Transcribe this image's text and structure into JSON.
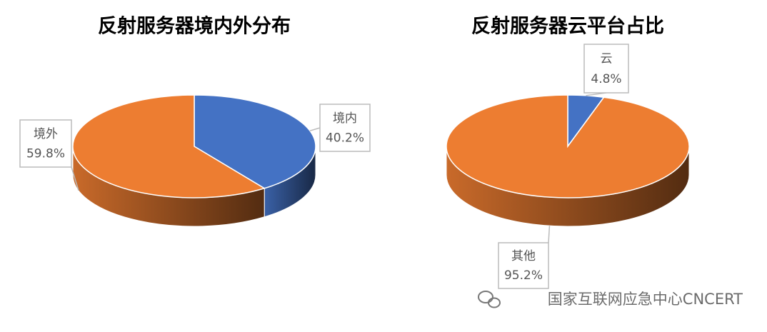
{
  "chart_data": [
    {
      "type": "pie",
      "title": "反射服务器境内外分布",
      "categories": [
        "境内",
        "境外"
      ],
      "values": [
        40.2,
        59.8
      ],
      "value_labels": [
        "40.2%",
        "59.8%"
      ],
      "colors": [
        "#4472c4",
        "#ed7d31"
      ]
    },
    {
      "type": "pie",
      "title": "反射服务器云平台占比",
      "categories": [
        "云",
        "其他"
      ],
      "values": [
        4.8,
        95.2
      ],
      "value_labels": [
        "4.8%",
        "95.2%"
      ],
      "colors": [
        "#4472c4",
        "#ed7d31"
      ]
    }
  ],
  "watermark": "国家互联网应急中心CNCERT"
}
